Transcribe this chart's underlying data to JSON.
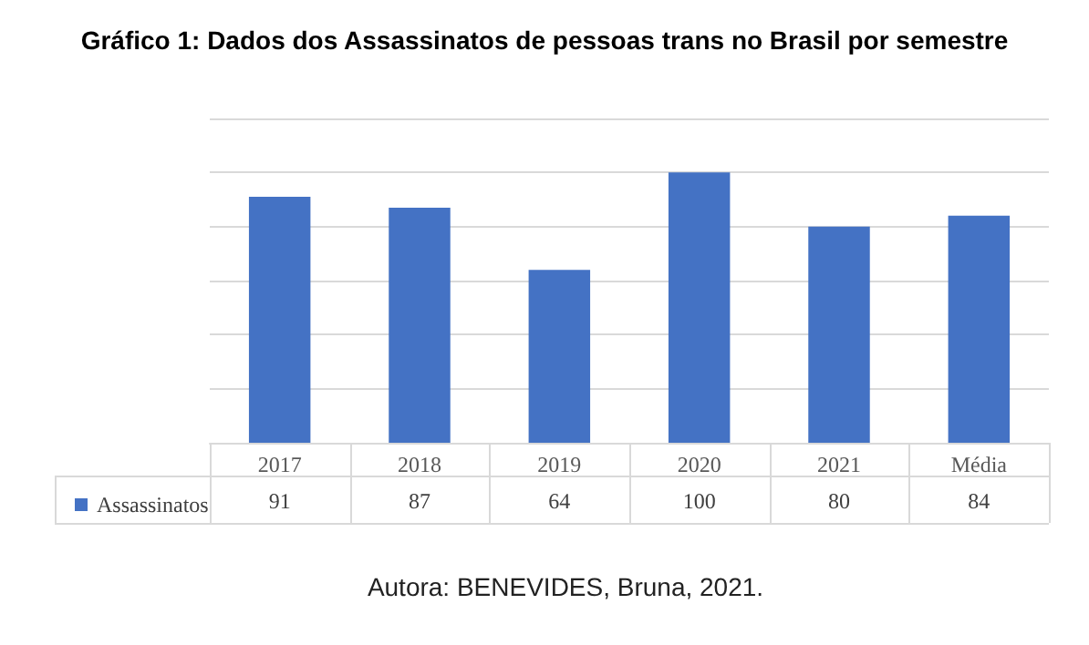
{
  "chart_data": {
    "type": "bar",
    "title": "Gráfico 1: Dados dos Assassinatos de pessoas trans no Brasil por semestre",
    "categories": [
      "2017",
      "2018",
      "2019",
      "2020",
      "2021",
      "Média"
    ],
    "series": [
      {
        "name": "Assassinatos",
        "color": "#4472c4",
        "values": [
          91,
          87,
          64,
          100,
          80,
          84
        ]
      }
    ],
    "ylim": [
      0,
      120
    ],
    "yticks": [
      {
        "value": 0,
        "label": null
      },
      {
        "value": 20,
        "label": null
      },
      {
        "value": 40,
        "label": null
      },
      {
        "value": 60,
        "label": null
      },
      {
        "value": 80,
        "label": null
      },
      {
        "value": 100,
        "label": null
      },
      {
        "value": 120,
        "label": null
      }
    ],
    "grid": "y",
    "tick_labels": "x",
    "legend": "bottom left",
    "data_labels": true,
    "annotations": [
      "Autora: BENEVIDES, Bruna, 2021."
    ]
  }
}
